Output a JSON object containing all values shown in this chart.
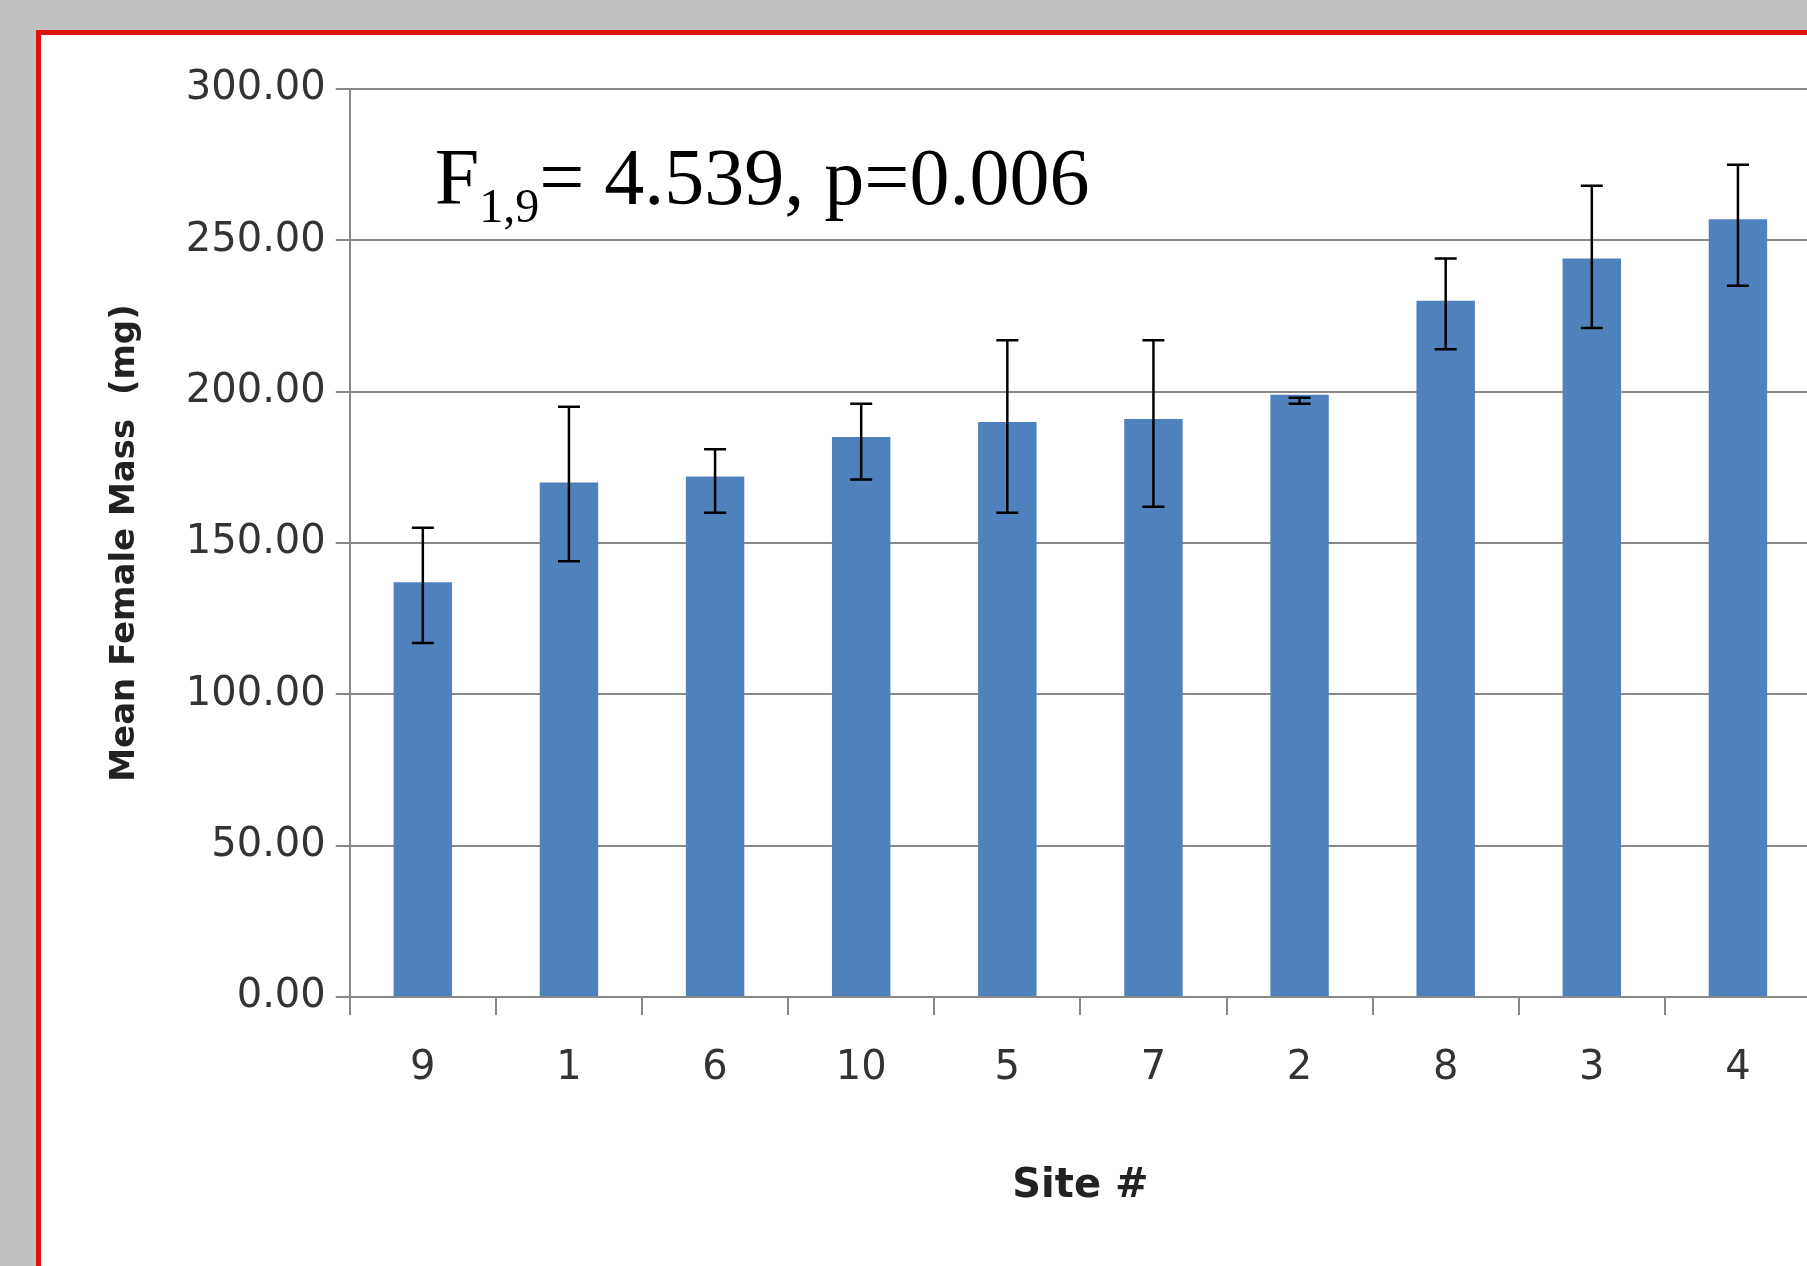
{
  "chart_data": {
    "type": "bar",
    "categories": [
      "9",
      "1",
      "6",
      "10",
      "5",
      "7",
      "2",
      "8",
      "3",
      "4"
    ],
    "values": [
      137,
      170,
      172,
      185,
      190,
      191,
      199,
      230,
      244,
      257
    ],
    "errors": [
      [
        117,
        155
      ],
      [
        144,
        195
      ],
      [
        160,
        181
      ],
      [
        171,
        196
      ],
      [
        160,
        217
      ],
      [
        162,
        217
      ],
      [
        196,
        198
      ],
      [
        214,
        244
      ],
      [
        221,
        268
      ],
      [
        235,
        275
      ]
    ],
    "color": "#4f81bd",
    "xlabel": "Site #",
    "ylabel": "Mean Female Mass  (mg)",
    "ylim": [
      0,
      300
    ],
    "yticks": [
      {
        "value": 0,
        "label": "0.00"
      },
      {
        "value": 50,
        "label": "50.00"
      },
      {
        "value": 100,
        "label": "100.00"
      },
      {
        "value": 150,
        "label": "150.00"
      },
      {
        "value": 200,
        "label": "200.00"
      },
      {
        "value": 250,
        "label": "250.00"
      },
      {
        "value": 300,
        "label": "300.00"
      }
    ],
    "grid": "y",
    "legend": false,
    "annotations": [
      "F$_{1,9}$= 4.539, p=0.006"
    ]
  }
}
